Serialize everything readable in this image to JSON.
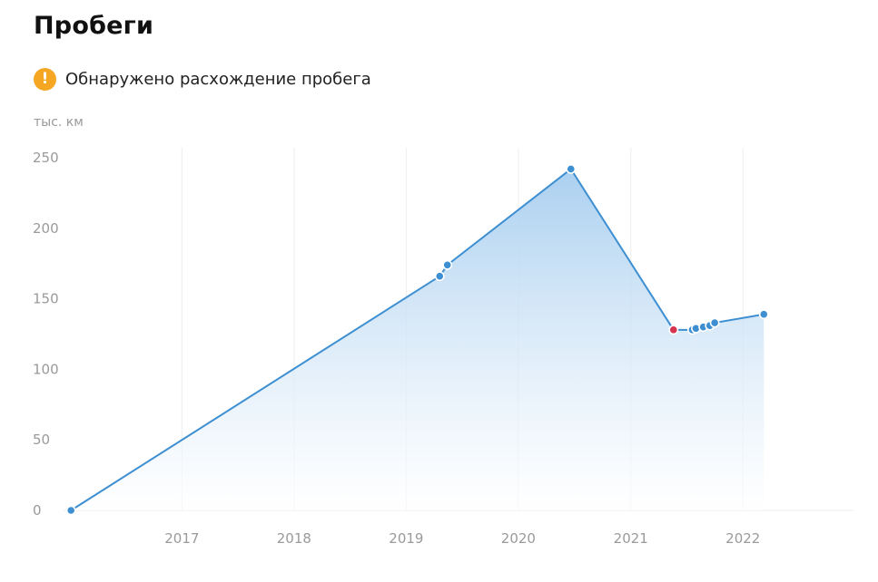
{
  "header": {
    "title": "Пробеги"
  },
  "warning": {
    "icon": "exclamation-circle-icon",
    "icon_glyph": "!",
    "text": "Обнаружено расхождение пробега",
    "color": "#f5a623"
  },
  "colors": {
    "line": "#3d8fd1",
    "point": "#3d8fd1",
    "anomaly_point": "#d6334f",
    "area_top": "#a6cdef",
    "gridline": "#eeeeee"
  },
  "chart_data": {
    "type": "area",
    "title": "",
    "xlabel": "",
    "ylabel": "тыс. км",
    "x_ticks": [
      "2017",
      "2018",
      "2019",
      "2020",
      "2021",
      "2022"
    ],
    "y_ticks": [
      "0",
      "50",
      "100",
      "150",
      "200",
      "250"
    ],
    "ylim": [
      0,
      250
    ],
    "xlim": [
      "2016-01-01",
      "2022-12-31"
    ],
    "grid": "vertical",
    "series": [
      {
        "points": [
          {
            "x": "2016-01-06",
            "y": 0
          },
          {
            "x": "2019-04-20",
            "y": 166
          },
          {
            "x": "2019-05-15",
            "y": 174
          },
          {
            "x": "2020-06-20",
            "y": 242
          },
          {
            "x": "2021-05-20",
            "y": 128,
            "anomaly": true
          },
          {
            "x": "2021-07-20",
            "y": 128
          },
          {
            "x": "2021-08-01",
            "y": 129
          },
          {
            "x": "2021-08-25",
            "y": 130
          },
          {
            "x": "2021-09-15",
            "y": 131
          },
          {
            "x": "2021-10-01",
            "y": 133
          },
          {
            "x": "2022-03-10",
            "y": 139
          }
        ]
      }
    ]
  }
}
